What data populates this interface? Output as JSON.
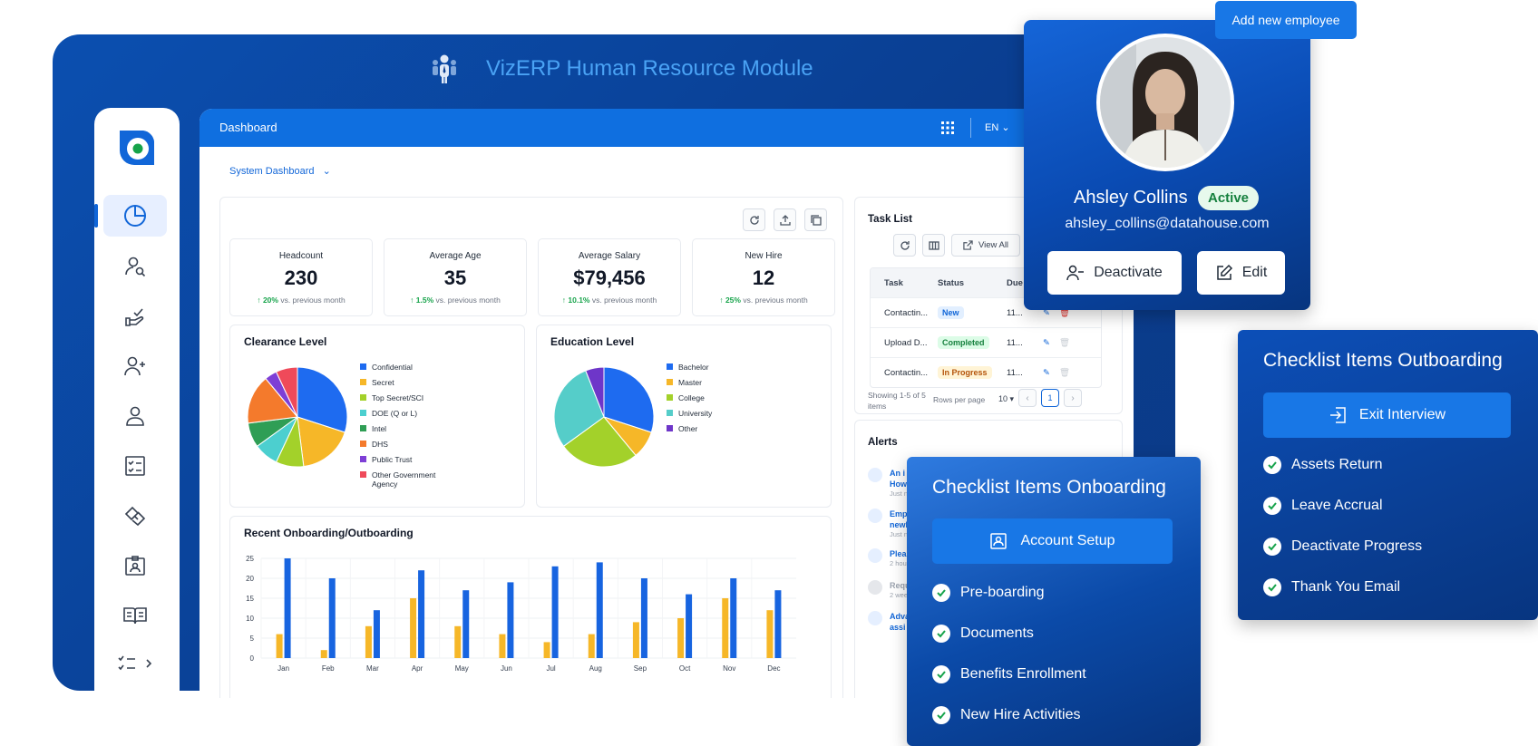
{
  "header": {
    "title": "VizERP Human Resource Module"
  },
  "topbar": {
    "title": "Dashboard",
    "lang": "EN"
  },
  "dashboard_selector": "System Dashboard",
  "kpis": [
    {
      "label": "Headcount",
      "value": "230",
      "change": "20%",
      "note": "vs. previous month"
    },
    {
      "label": "Average Age",
      "value": "35",
      "change": "1.5%",
      "note": "vs. previous month"
    },
    {
      "label": "Average Salary",
      "value": "$79,456",
      "change": "10.1%",
      "note": "vs. previous month"
    },
    {
      "label": "New Hire",
      "value": "12",
      "change": "25%",
      "note": "vs. previous month"
    }
  ],
  "colors": {
    "accent": "#1166d8",
    "frame": "#0b4fb0",
    "up": "#16a34a"
  },
  "chart_data": [
    {
      "type": "pie",
      "title": "Clearance Level",
      "categories": [
        "Confidential",
        "Secret",
        "Top Secret/SCI",
        "DOE (Q or L)",
        "Intel",
        "DHS",
        "Public Trust",
        "Other Government Agency"
      ],
      "values": [
        30,
        18,
        9,
        8,
        8,
        16,
        4,
        7
      ],
      "colors": [
        "#1e6bf0",
        "#f6b728",
        "#a3d12a",
        "#4ccfcf",
        "#2f9e55",
        "#f47a2c",
        "#7e3fd6",
        "#ef4a5a"
      ]
    },
    {
      "type": "pie",
      "title": "Education Level",
      "categories": [
        "Bachelor",
        "Master",
        "College",
        "University",
        "Other"
      ],
      "values": [
        30,
        9,
        26,
        29,
        6
      ],
      "colors": [
        "#1e6bf0",
        "#f6b728",
        "#a3d12a",
        "#55cdc9",
        "#6e36c9"
      ]
    },
    {
      "type": "bar",
      "title": "Recent Onboarding/Outboarding",
      "categories": [
        "Jan",
        "Feb",
        "Mar",
        "Apr",
        "May",
        "Jun",
        "Jul",
        "Aug",
        "Sep",
        "Oct",
        "Nov",
        "Dec"
      ],
      "series": [
        {
          "values": [
            6,
            2,
            8,
            15,
            8,
            6,
            4,
            6,
            9,
            10,
            15,
            12
          ],
          "color": "#f6b728"
        },
        {
          "values": [
            25,
            20,
            12,
            22,
            17,
            19,
            23,
            24,
            20,
            16,
            20,
            17
          ],
          "color": "#1764e0"
        }
      ],
      "ylim": [
        0,
        25
      ],
      "yticks": [
        0,
        5,
        10,
        15,
        20,
        25
      ],
      "grid": true
    }
  ],
  "task_list": {
    "title": "Task List",
    "view_all": "View All",
    "columns": [
      "Task",
      "Status",
      "Due"
    ],
    "rows": [
      {
        "task": "Contactin...",
        "status": "New",
        "due": "11..."
      },
      {
        "task": "Upload D...",
        "status": "Completed",
        "due": "11..."
      },
      {
        "task": "Contactin...",
        "status": "In Progress",
        "due": "11..."
      }
    ],
    "showing": "Showing 1-5 of 5 items",
    "rows_per_page_label": "Rows per page",
    "rows_per_page": "10",
    "page": "1"
  },
  "alerts": {
    "title": "Alerts",
    "items": [
      {
        "title": "An i",
        "title2": "How",
        "time": "Just n"
      },
      {
        "title": "Emp",
        "title2": "newl",
        "time": "Just n"
      },
      {
        "title": "Plea",
        "title2": "",
        "time": "2 hou"
      },
      {
        "title": "Requ",
        "title2": "",
        "time": "2 wee"
      },
      {
        "title": "Adva",
        "title2": "assi",
        "time": ""
      }
    ]
  },
  "profile": {
    "add_button": "Add new employee",
    "name": "Ahsley Collins",
    "status": "Active",
    "email": "ahsley_collins@datahouse.com",
    "deactivate": "Deactivate",
    "edit": "Edit"
  },
  "onboarding": {
    "title": "Checklist Items Onboarding",
    "main": "Account Setup",
    "items": [
      "Pre-boarding",
      "Documents",
      "Benefits Enrollment",
      "New Hire Activities"
    ]
  },
  "outboarding": {
    "title": "Checklist Items Outboarding",
    "main": "Exit Interview",
    "items": [
      "Assets Return",
      "Leave Accrual",
      "Deactivate Progress",
      "Thank You Email"
    ]
  }
}
